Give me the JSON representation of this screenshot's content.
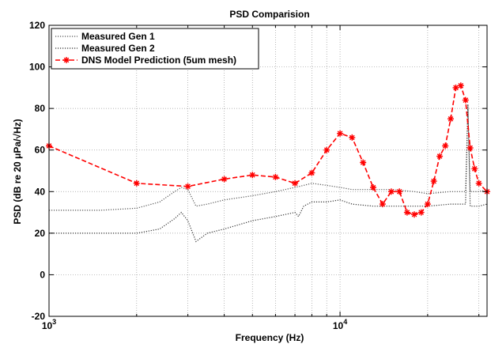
{
  "chart_data": {
    "type": "line",
    "title": "PSD Comparision",
    "xlabel": "Frequency (Hz)",
    "ylabel": "PSD (dB re 20 μPa/√Hz)",
    "xscale": "log",
    "xlim": [
      1000,
      32000
    ],
    "ylim": [
      -20,
      120
    ],
    "yticks": [
      -20,
      0,
      20,
      40,
      60,
      80,
      100,
      120
    ],
    "xtick_labels": [
      {
        "value": 1000,
        "base": "10",
        "exp": "3"
      },
      {
        "value": 10000,
        "base": "10",
        "exp": "4"
      }
    ],
    "grid": true,
    "legend_position": "top-left",
    "series": [
      {
        "name": "Measured Gen 1",
        "color": "#555555",
        "style": "dotted",
        "marker": "none",
        "x": [
          1000,
          1500,
          2000,
          2400,
          2700,
          2850,
          3000,
          3200,
          3500,
          4000,
          5000,
          6000,
          7000,
          7500,
          8000,
          9000,
          10000,
          11000,
          13000,
          15000,
          18000,
          20000,
          24000,
          26000,
          27000,
          27500,
          28000,
          30000,
          32000
        ],
        "y": [
          31,
          31,
          32,
          35,
          40,
          42,
          41,
          33,
          34,
          36,
          38,
          40,
          42,
          43,
          44,
          43,
          42,
          41,
          41,
          41,
          40,
          39,
          40,
          40,
          40,
          80,
          40,
          40,
          41
        ]
      },
      {
        "name": "Measured Gen 2",
        "color": "#333333",
        "style": "dotted",
        "marker": "none",
        "x": [
          1000,
          1500,
          2000,
          2400,
          2700,
          2850,
          3000,
          3200,
          3500,
          4000,
          5000,
          6000,
          7000,
          7200,
          7500,
          8000,
          9000,
          10000,
          11000,
          13000,
          15000,
          18000,
          20000,
          24000,
          26000,
          27000,
          27500,
          28000,
          30000,
          32000
        ],
        "y": [
          20,
          20,
          20,
          22,
          27,
          30,
          26,
          16,
          20,
          22,
          26,
          28,
          30,
          28,
          33,
          35,
          35,
          36,
          34,
          33,
          33,
          33,
          33,
          34,
          34,
          34,
          82,
          33,
          33,
          34
        ]
      },
      {
        "name": "DNS Model Prediction (5um mesh)",
        "color": "#ff0000",
        "style": "dashed",
        "marker": "star",
        "x": [
          1000,
          2000,
          3000,
          4000,
          5000,
          6000,
          7000,
          8000,
          9000,
          10000,
          11000,
          12000,
          13000,
          14000,
          15000,
          16000,
          17000,
          18000,
          19000,
          20000,
          21000,
          22000,
          23000,
          24000,
          25000,
          26000,
          27000,
          28000,
          29000,
          30000,
          32000
        ],
        "y": [
          62,
          44,
          42.5,
          46,
          48,
          47,
          44,
          49,
          60,
          68,
          66,
          54,
          42,
          34,
          40,
          40,
          30,
          29,
          30,
          34,
          45,
          57,
          62,
          75,
          90,
          91,
          84,
          61,
          51,
          44,
          40
        ]
      }
    ]
  }
}
